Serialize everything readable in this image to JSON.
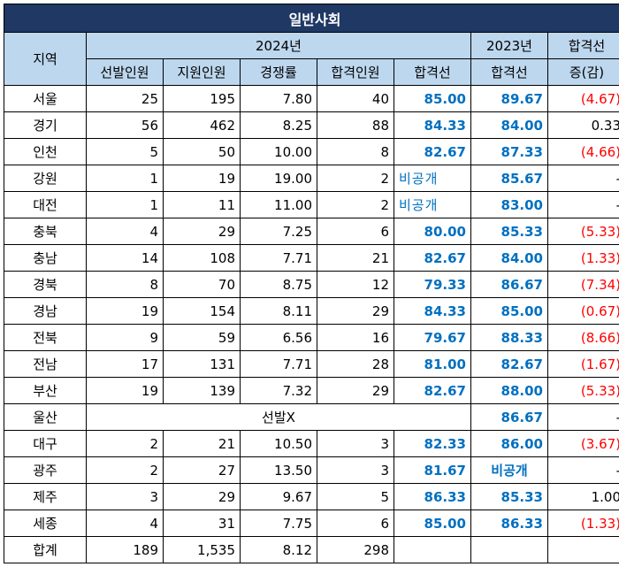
{
  "title": "일반사회",
  "header": {
    "region": "지역",
    "year_2024": "2024년",
    "year_2023": "2023년",
    "diff_label_1": "합격선",
    "diff_label_2": "증(감)",
    "cols_2024": [
      "선발인원",
      "지원인원",
      "경쟁률",
      "합격인원",
      "합격선"
    ],
    "col_2023": "합격선"
  },
  "rows": [
    {
      "region": "서울",
      "sel": "25",
      "app": "195",
      "ratio": "7.80",
      "pass_n": "40",
      "cut24": "85.00",
      "cut23": "89.67",
      "diff": "(4.67)"
    },
    {
      "region": "경기",
      "sel": "56",
      "app": "462",
      "ratio": "8.25",
      "pass_n": "88",
      "cut24": "84.33",
      "cut23": "84.00",
      "diff": "0.33"
    },
    {
      "region": "인천",
      "sel": "5",
      "app": "50",
      "ratio": "10.00",
      "pass_n": "8",
      "cut24": "82.67",
      "cut23": "87.33",
      "diff": "(4.66)"
    },
    {
      "region": "강원",
      "sel": "1",
      "app": "19",
      "ratio": "19.00",
      "pass_n": "2",
      "cut24": "비공개",
      "cut23": "85.67",
      "diff": "-"
    },
    {
      "region": "대전",
      "sel": "1",
      "app": "11",
      "ratio": "11.00",
      "pass_n": "2",
      "cut24": "비공개",
      "cut23": "83.00",
      "diff": "-"
    },
    {
      "region": "충북",
      "sel": "4",
      "app": "29",
      "ratio": "7.25",
      "pass_n": "6",
      "cut24": "80.00",
      "cut23": "85.33",
      "diff": "(5.33)"
    },
    {
      "region": "충남",
      "sel": "14",
      "app": "108",
      "ratio": "7.71",
      "pass_n": "21",
      "cut24": "82.67",
      "cut23": "84.00",
      "diff": "(1.33)"
    },
    {
      "region": "경북",
      "sel": "8",
      "app": "70",
      "ratio": "8.75",
      "pass_n": "12",
      "cut24": "79.33",
      "cut23": "86.67",
      "diff": "(7.34)"
    },
    {
      "region": "경남",
      "sel": "19",
      "app": "154",
      "ratio": "8.11",
      "pass_n": "29",
      "cut24": "84.33",
      "cut23": "85.00",
      "diff": "(0.67)"
    },
    {
      "region": "전북",
      "sel": "9",
      "app": "59",
      "ratio": "6.56",
      "pass_n": "16",
      "cut24": "79.67",
      "cut23": "88.33",
      "diff": "(8.66)"
    },
    {
      "region": "전남",
      "sel": "17",
      "app": "131",
      "ratio": "7.71",
      "pass_n": "28",
      "cut24": "81.00",
      "cut23": "82.67",
      "diff": "(1.67)"
    },
    {
      "region": "부산",
      "sel": "19",
      "app": "139",
      "ratio": "7.32",
      "pass_n": "29",
      "cut24": "82.67",
      "cut23": "88.00",
      "diff": "(5.33)"
    },
    {
      "region": "울산",
      "note": "선발X",
      "cut23": "86.67",
      "diff": "-"
    },
    {
      "region": "대구",
      "sel": "2",
      "app": "21",
      "ratio": "10.50",
      "pass_n": "3",
      "cut24": "82.33",
      "cut23": "86.00",
      "diff": "(3.67)"
    },
    {
      "region": "광주",
      "sel": "2",
      "app": "27",
      "ratio": "13.50",
      "pass_n": "3",
      "cut24": "81.67",
      "cut23": "비공개",
      "diff": "-"
    },
    {
      "region": "제주",
      "sel": "3",
      "app": "29",
      "ratio": "9.67",
      "pass_n": "5",
      "cut24": "86.33",
      "cut23": "85.33",
      "diff": "1.00"
    },
    {
      "region": "세종",
      "sel": "4",
      "app": "31",
      "ratio": "7.75",
      "pass_n": "6",
      "cut24": "85.00",
      "cut23": "86.33",
      "diff": "(1.33)"
    }
  ],
  "total": {
    "region": "합계",
    "sel": "189",
    "app": "1,535",
    "ratio": "8.12",
    "pass_n": "298"
  },
  "colors": {
    "title_bg": "#1f3864",
    "header_bg": "#bdd7ee",
    "cutoff_text": "#0070c0",
    "decrease_text": "#ff0000"
  }
}
